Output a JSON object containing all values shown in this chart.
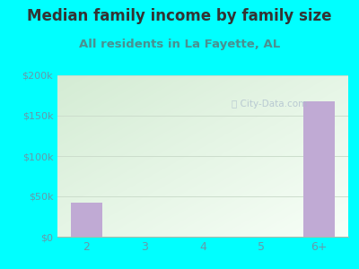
{
  "title": "Median family income by family size",
  "subtitle": "All residents in La Fayette, AL",
  "categories": [
    "2",
    "3",
    "4",
    "5",
    "6+"
  ],
  "values": [
    42000,
    0,
    0,
    0,
    168000
  ],
  "bar_color": "#c0aad4",
  "ylim": [
    0,
    200000
  ],
  "yticks": [
    0,
    50000,
    100000,
    150000,
    200000
  ],
  "ytick_labels": [
    "$0",
    "$50k",
    "$100k",
    "$150k",
    "$200k"
  ],
  "background_color": "#00FFFF",
  "plot_grad_topleft": "#d4ecd4",
  "plot_grad_bottomright": "#f8fff8",
  "title_color": "#333333",
  "subtitle_color": "#4a9090",
  "tick_color": "#6699aa",
  "watermark": "City-Data.com",
  "title_fontsize": 12,
  "subtitle_fontsize": 9.5,
  "tick_fontsize": 8
}
